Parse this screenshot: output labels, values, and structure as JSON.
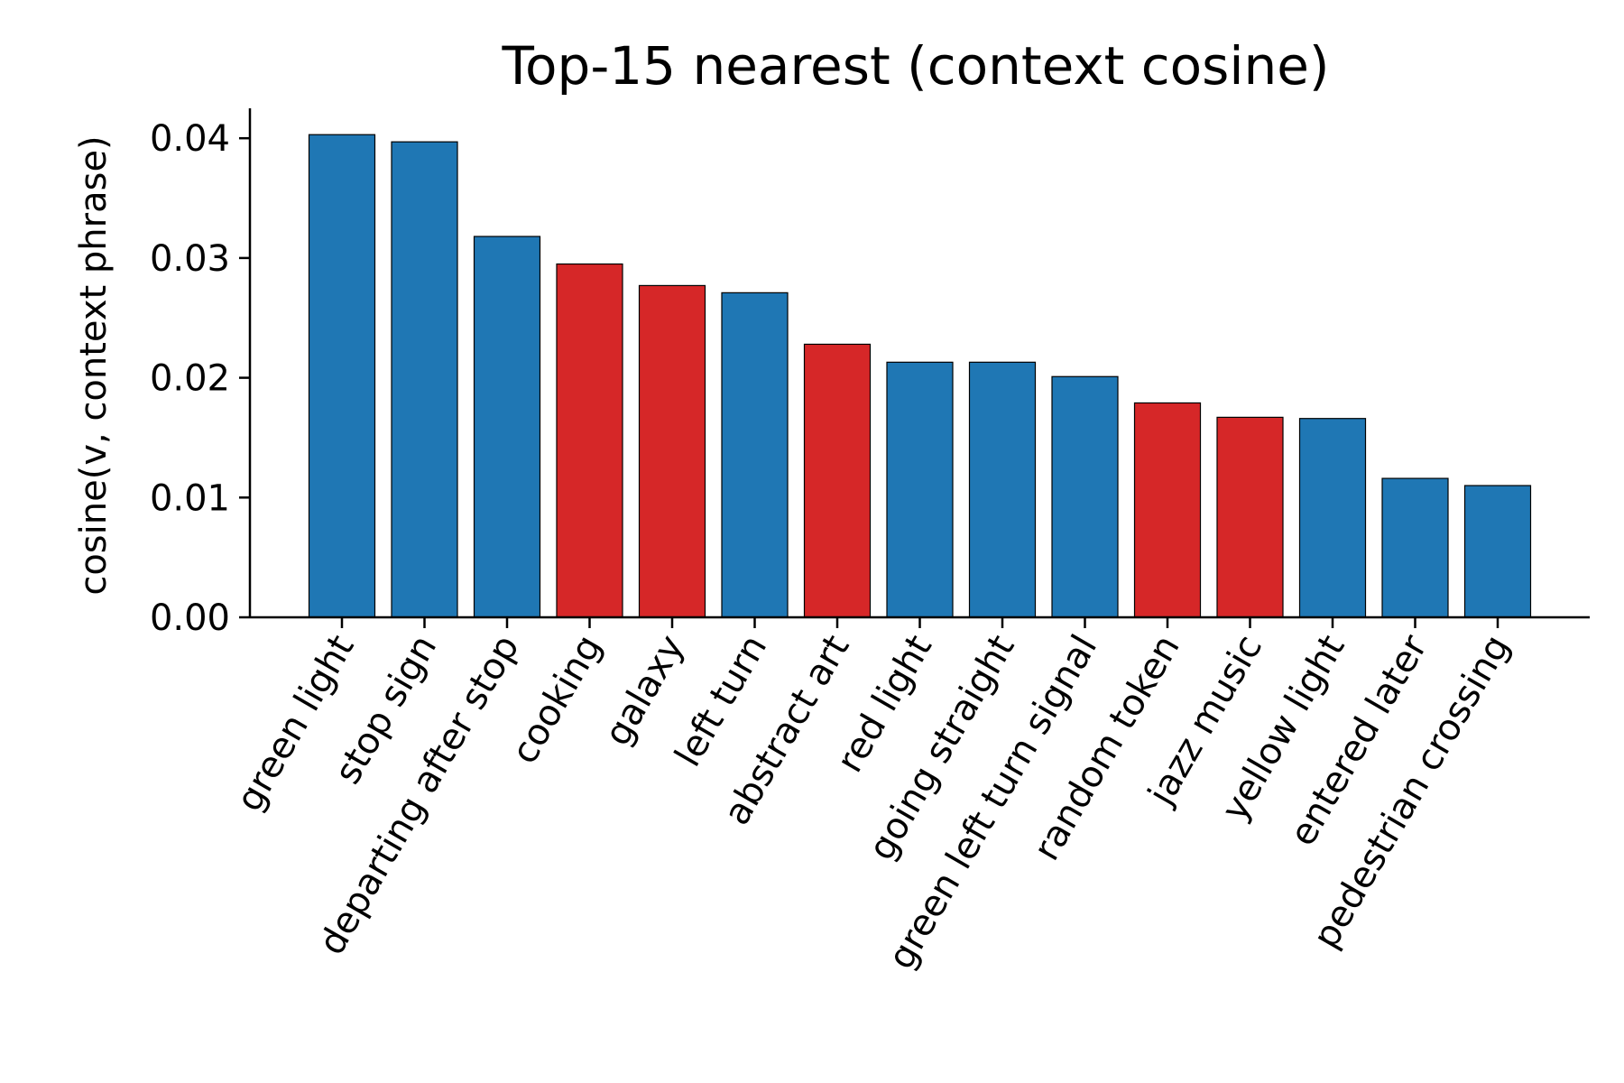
{
  "chart_data": {
    "type": "bar",
    "title": "Top-15 nearest (context cosine)",
    "xlabel": "",
    "ylabel": "cosine(v, context phrase)",
    "ylim": [
      0,
      0.0425
    ],
    "yticks": [
      0.0,
      0.01,
      0.02,
      0.03,
      0.04
    ],
    "ytick_labels": [
      "0.00",
      "0.01",
      "0.02",
      "0.03",
      "0.04"
    ],
    "grid": false,
    "categories": [
      "green light",
      "stop sign",
      "departing after stop",
      "cooking",
      "galaxy",
      "left turn",
      "abstract art",
      "red light",
      "going straight",
      "green left turn signal",
      "random token",
      "jazz music",
      "yellow light",
      "entered later",
      "pedestrian crossing"
    ],
    "values": [
      0.0403,
      0.0397,
      0.0318,
      0.0295,
      0.0277,
      0.0271,
      0.0228,
      0.0213,
      0.0213,
      0.0201,
      0.0179,
      0.0167,
      0.0166,
      0.0116,
      0.011
    ],
    "group": [
      "blue",
      "blue",
      "blue",
      "red",
      "red",
      "blue",
      "red",
      "blue",
      "blue",
      "blue",
      "red",
      "red",
      "blue",
      "blue",
      "blue"
    ],
    "colors": {
      "blue": "#1f77b4",
      "red": "#d62728"
    }
  }
}
